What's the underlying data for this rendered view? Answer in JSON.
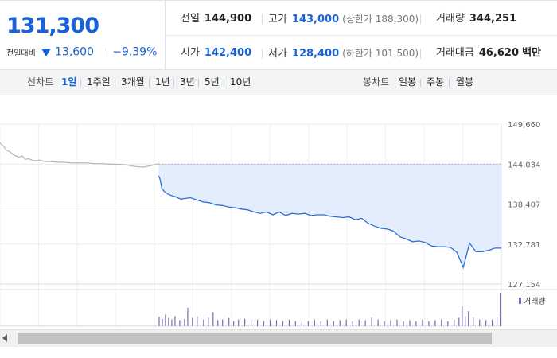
{
  "header": {
    "price": "131,300",
    "change_label": "전일대비",
    "change_abs": "13,600",
    "change_pct": "−9.39%",
    "stats": {
      "prev_close": {
        "label": "전일",
        "value": "144,900"
      },
      "high": {
        "label": "고가",
        "value": "143,000",
        "sub": "(상한가 188,300)"
      },
      "volume": {
        "label": "거래량",
        "value": "344,251"
      },
      "open": {
        "label": "시가",
        "value": "142,400"
      },
      "low": {
        "label": "저가",
        "value": "128,400",
        "sub": "(하한가 101,500)"
      },
      "amount": {
        "label": "거래대금",
        "value": "46,620",
        "unit": "백만"
      }
    }
  },
  "toolbar": {
    "line_label": "선차트",
    "periods": [
      "1일",
      "1주일",
      "3개월",
      "1년",
      "3년",
      "5년",
      "10년"
    ],
    "active_period": "1일",
    "candle_label": "봉차트",
    "candles": [
      "일봉",
      "주봉",
      "월봉"
    ]
  },
  "colors": {
    "accent_blue": "#1762d8",
    "line_blue": "#2d6ed6",
    "area_fill": "#e3edfb",
    "prev_line": "#b4b4b4",
    "volume_bar": "#7d6cb4"
  },
  "chart_data": {
    "type": "line",
    "yticks": [
      "149,660",
      "144,034",
      "138,407",
      "132,781",
      "127,154"
    ],
    "ylim": [
      127154,
      149660
    ],
    "reference_value": 144034,
    "volume_legend": "거래량",
    "series": [
      {
        "x": [
          0,
          2,
          4,
          6,
          8,
          10,
          12,
          14,
          16,
          18,
          20,
          22,
          25,
          28,
          32,
          36,
          40,
          45,
          50,
          55,
          60,
          65,
          70,
          75,
          80,
          85,
          90,
          95,
          100
        ],
        "y": [
          147000,
          146600,
          146000,
          145800,
          145400,
          145200,
          145000,
          145200,
          144700,
          144800,
          144600,
          144500,
          144600,
          144400,
          144400,
          144300,
          144300,
          144200,
          144200,
          144200,
          144100,
          144100,
          144000,
          144000,
          143900,
          143700,
          143600,
          143800,
          144100
        ]
      },
      {
        "x": [
          100,
          101,
          102,
          104,
          106,
          108,
          111,
          114,
          117,
          120,
          124,
          128,
          132,
          136,
          140,
          144,
          148,
          152,
          156,
          160,
          164,
          168,
          172,
          176,
          180,
          184,
          188,
          192,
          196,
          200,
          204,
          208,
          212,
          216,
          220,
          224,
          228,
          232,
          236,
          240,
          244,
          248,
          252,
          256,
          260,
          264,
          268,
          272,
          276,
          280,
          284,
          288,
          292,
          296,
          300,
          304,
          308,
          312,
          316
        ],
        "y": [
          142400,
          141800,
          140600,
          140100,
          139800,
          139600,
          139400,
          139100,
          139200,
          139300,
          139000,
          138700,
          138600,
          138300,
          138200,
          138000,
          137900,
          137700,
          137600,
          137300,
          137100,
          137300,
          136900,
          137300,
          136800,
          137100,
          137000,
          137100,
          136800,
          136900,
          136900,
          136700,
          136600,
          136500,
          136600,
          136200,
          136400,
          135700,
          135300,
          135000,
          134900,
          134600,
          133800,
          133500,
          133100,
          133200,
          133000,
          132500,
          132400,
          132400,
          132300,
          131600,
          129500,
          132900,
          131700,
          131700,
          131900,
          132200,
          132200
        ]
      }
    ],
    "volume_bars": [
      {
        "x": 100,
        "v": 0.28
      },
      {
        "x": 102,
        "v": 0.22
      },
      {
        "x": 104,
        "v": 0.35
      },
      {
        "x": 106,
        "v": 0.25
      },
      {
        "x": 108,
        "v": 0.2
      },
      {
        "x": 110,
        "v": 0.3
      },
      {
        "x": 113,
        "v": 0.18
      },
      {
        "x": 116,
        "v": 0.22
      },
      {
        "x": 118,
        "v": 0.55
      },
      {
        "x": 121,
        "v": 0.25
      },
      {
        "x": 124,
        "v": 0.3
      },
      {
        "x": 128,
        "v": 0.2
      },
      {
        "x": 131,
        "v": 0.25
      },
      {
        "x": 134,
        "v": 0.42
      },
      {
        "x": 137,
        "v": 0.18
      },
      {
        "x": 140,
        "v": 0.2
      },
      {
        "x": 144,
        "v": 0.25
      },
      {
        "x": 147,
        "v": 0.15
      },
      {
        "x": 150,
        "v": 0.2
      },
      {
        "x": 154,
        "v": 0.22
      },
      {
        "x": 158,
        "v": 0.18
      },
      {
        "x": 162,
        "v": 0.2
      },
      {
        "x": 166,
        "v": 0.15
      },
      {
        "x": 170,
        "v": 0.2
      },
      {
        "x": 174,
        "v": 0.18
      },
      {
        "x": 178,
        "v": 0.15
      },
      {
        "x": 182,
        "v": 0.2
      },
      {
        "x": 186,
        "v": 0.15
      },
      {
        "x": 190,
        "v": 0.18
      },
      {
        "x": 194,
        "v": 0.15
      },
      {
        "x": 198,
        "v": 0.2
      },
      {
        "x": 202,
        "v": 0.15
      },
      {
        "x": 206,
        "v": 0.2
      },
      {
        "x": 210,
        "v": 0.15
      },
      {
        "x": 214,
        "v": 0.18
      },
      {
        "x": 218,
        "v": 0.2
      },
      {
        "x": 222,
        "v": 0.15
      },
      {
        "x": 226,
        "v": 0.2
      },
      {
        "x": 230,
        "v": 0.18
      },
      {
        "x": 234,
        "v": 0.25
      },
      {
        "x": 238,
        "v": 0.2
      },
      {
        "x": 242,
        "v": 0.15
      },
      {
        "x": 246,
        "v": 0.18
      },
      {
        "x": 250,
        "v": 0.2
      },
      {
        "x": 254,
        "v": 0.15
      },
      {
        "x": 258,
        "v": 0.18
      },
      {
        "x": 262,
        "v": 0.15
      },
      {
        "x": 266,
        "v": 0.2
      },
      {
        "x": 270,
        "v": 0.15
      },
      {
        "x": 274,
        "v": 0.18
      },
      {
        "x": 278,
        "v": 0.2
      },
      {
        "x": 282,
        "v": 0.15
      },
      {
        "x": 286,
        "v": 0.2
      },
      {
        "x": 289,
        "v": 0.25
      },
      {
        "x": 291,
        "v": 0.6
      },
      {
        "x": 293,
        "v": 0.3
      },
      {
        "x": 295,
        "v": 0.45
      },
      {
        "x": 298,
        "v": 0.25
      },
      {
        "x": 302,
        "v": 0.2
      },
      {
        "x": 306,
        "v": 0.18
      },
      {
        "x": 310,
        "v": 0.2
      },
      {
        "x": 313,
        "v": 0.25
      },
      {
        "x": 315,
        "v": 1.0
      }
    ]
  }
}
